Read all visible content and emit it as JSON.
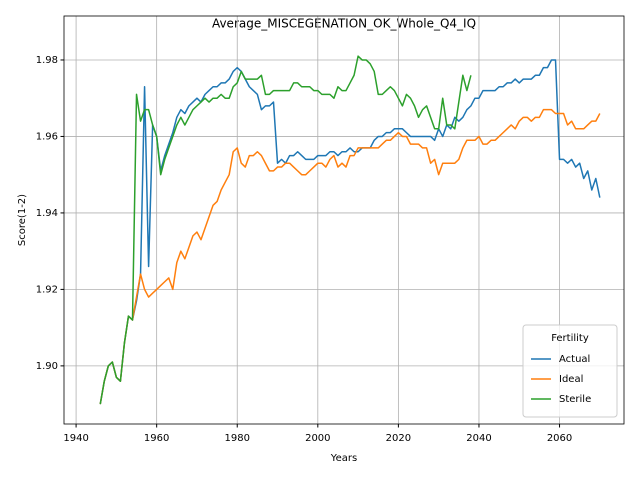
{
  "chart_data": {
    "type": "line",
    "title": "Average_MISCEGENATION_OK_Whole_Q4_IQ",
    "xlabel": "Years",
    "ylabel": "Score(1-2)",
    "x": [
      1946,
      1947,
      1948,
      1949,
      1950,
      1951,
      1952,
      1953,
      1954,
      1955,
      1956,
      1957,
      1958,
      1959,
      1960,
      1961,
      1962,
      1963,
      1964,
      1965,
      1966,
      1967,
      1968,
      1969,
      1970,
      1971,
      1972,
      1973,
      1974,
      1975,
      1976,
      1977,
      1978,
      1979,
      1980,
      1981,
      1982,
      1983,
      1984,
      1985,
      1986,
      1987,
      1988,
      1989,
      1990,
      1991,
      1992,
      1993,
      1994,
      1995,
      1996,
      1997,
      1998,
      1999,
      2000,
      2001,
      2002,
      2003,
      2004,
      2005,
      2006,
      2007,
      2008,
      2009,
      2010,
      2011,
      2012,
      2013,
      2014,
      2015,
      2016,
      2017,
      2018,
      2019,
      2020,
      2021,
      2022,
      2023,
      2024,
      2025,
      2026,
      2027,
      2028,
      2029,
      2030,
      2031,
      2032,
      2033,
      2034,
      2035,
      2036,
      2037,
      2038,
      2039,
      2040,
      2041,
      2042,
      2043,
      2044,
      2045,
      2046,
      2047,
      2048,
      2049,
      2050,
      2051,
      2052,
      2053,
      2054,
      2055,
      2056,
      2057,
      2058,
      2059,
      2060,
      2061,
      2062,
      2063,
      2064,
      2065,
      2066,
      2067,
      2068,
      2069,
      2070
    ],
    "series": [
      {
        "name": "Actual",
        "color": "#1f77b4",
        "values": [
          1.89,
          1.896,
          1.9,
          1.901,
          1.897,
          1.896,
          1.906,
          1.913,
          1.912,
          1.917,
          1.924,
          1.973,
          1.926,
          1.963,
          1.96,
          1.951,
          1.955,
          1.958,
          1.961,
          1.965,
          1.967,
          1.966,
          1.968,
          1.969,
          1.97,
          1.969,
          1.971,
          1.972,
          1.973,
          1.973,
          1.974,
          1.974,
          1.975,
          1.977,
          1.978,
          1.977,
          1.975,
          1.973,
          1.972,
          1.971,
          1.967,
          1.968,
          1.968,
          1.969,
          1.953,
          1.954,
          1.953,
          1.955,
          1.955,
          1.956,
          1.955,
          1.954,
          1.954,
          1.954,
          1.955,
          1.955,
          1.955,
          1.956,
          1.956,
          1.955,
          1.956,
          1.956,
          1.957,
          1.956,
          1.956,
          1.957,
          1.957,
          1.957,
          1.959,
          1.96,
          1.96,
          1.961,
          1.961,
          1.962,
          1.962,
          1.962,
          1.961,
          1.96,
          1.96,
          1.96,
          1.96,
          1.96,
          1.96,
          1.959,
          1.962,
          1.96,
          1.963,
          1.962,
          1.965,
          1.964,
          1.965,
          1.967,
          1.968,
          1.97,
          1.97,
          1.972,
          1.972,
          1.972,
          1.972,
          1.973,
          1.973,
          1.974,
          1.974,
          1.975,
          1.974,
          1.975,
          1.975,
          1.975,
          1.976,
          1.976,
          1.978,
          1.978,
          1.98,
          1.98,
          1.954,
          1.954,
          1.953,
          1.954,
          1.952,
          1.953,
          1.949,
          1.951,
          1.946,
          1.949,
          1.944
        ]
      },
      {
        "name": "Ideal",
        "color": "#ff7f0e",
        "values": [
          1.89,
          1.896,
          1.9,
          1.901,
          1.897,
          1.896,
          1.906,
          1.913,
          1.912,
          1.918,
          1.924,
          1.92,
          1.918,
          1.919,
          1.92,
          1.921,
          1.922,
          1.923,
          1.92,
          1.927,
          1.93,
          1.928,
          1.931,
          1.934,
          1.935,
          1.933,
          1.936,
          1.939,
          1.942,
          1.943,
          1.946,
          1.948,
          1.95,
          1.956,
          1.957,
          1.953,
          1.952,
          1.955,
          1.955,
          1.956,
          1.955,
          1.953,
          1.951,
          1.951,
          1.952,
          1.952,
          1.953,
          1.953,
          1.952,
          1.951,
          1.95,
          1.95,
          1.951,
          1.952,
          1.953,
          1.953,
          1.952,
          1.954,
          1.955,
          1.952,
          1.953,
          1.952,
          1.955,
          1.955,
          1.957,
          1.957,
          1.957,
          1.957,
          1.957,
          1.957,
          1.958,
          1.959,
          1.959,
          1.96,
          1.961,
          1.96,
          1.96,
          1.958,
          1.958,
          1.958,
          1.957,
          1.957,
          1.953,
          1.954,
          1.95,
          1.953,
          1.953,
          1.953,
          1.953,
          1.954,
          1.957,
          1.959,
          1.959,
          1.959,
          1.96,
          1.958,
          1.958,
          1.959,
          1.959,
          1.96,
          1.961,
          1.962,
          1.963,
          1.962,
          1.964,
          1.965,
          1.965,
          1.964,
          1.965,
          1.965,
          1.967,
          1.967,
          1.967,
          1.966,
          1.966,
          1.966,
          1.963,
          1.964,
          1.962,
          1.962,
          1.962,
          1.963,
          1.964,
          1.964,
          1.966
        ]
      },
      {
        "name": "Sterile",
        "color": "#2ca02c",
        "values": [
          1.89,
          1.896,
          1.9,
          1.901,
          1.897,
          1.896,
          1.906,
          1.913,
          1.912,
          1.971,
          1.964,
          1.967,
          1.967,
          1.963,
          1.96,
          1.95,
          1.954,
          1.957,
          1.96,
          1.963,
          1.965,
          1.963,
          1.965,
          1.967,
          1.968,
          1.969,
          1.97,
          1.969,
          1.97,
          1.97,
          1.971,
          1.97,
          1.97,
          1.973,
          1.974,
          1.977,
          1.975,
          1.975,
          1.975,
          1.975,
          1.976,
          1.971,
          1.971,
          1.972,
          1.972,
          1.972,
          1.972,
          1.972,
          1.974,
          1.974,
          1.973,
          1.973,
          1.973,
          1.972,
          1.972,
          1.971,
          1.971,
          1.971,
          1.97,
          1.973,
          1.972,
          1.972,
          1.974,
          1.976,
          1.981,
          1.98,
          1.98,
          1.979,
          1.977,
          1.971,
          1.971,
          1.972,
          1.973,
          1.972,
          1.97,
          1.968,
          1.971,
          1.97,
          1.968,
          1.965,
          1.967,
          1.968,
          1.965,
          1.962,
          1.962,
          1.97,
          1.963,
          1.963,
          1.962,
          1.969,
          1.976,
          1.972,
          1.976,
          null,
          null,
          null,
          null,
          null,
          null,
          null,
          null,
          null,
          null,
          null,
          null,
          null,
          null,
          null,
          null,
          null,
          null,
          null,
          null,
          null,
          null,
          null,
          null,
          null,
          null,
          null,
          null,
          null,
          null,
          null,
          null
        ]
      }
    ],
    "xlim": [
      1937,
      2076
    ],
    "ylim": [
      1.8848,
      1.9915
    ],
    "xticks": [
      1940,
      1960,
      1980,
      2000,
      2020,
      2040,
      2060
    ],
    "yticks": [
      {
        "value": 1.9,
        "label": "1.90"
      },
      1.92,
      1.94,
      1.96,
      1.98
    ],
    "grid": true,
    "legend_title": "Fertility",
    "legend_loc": "lower right"
  }
}
